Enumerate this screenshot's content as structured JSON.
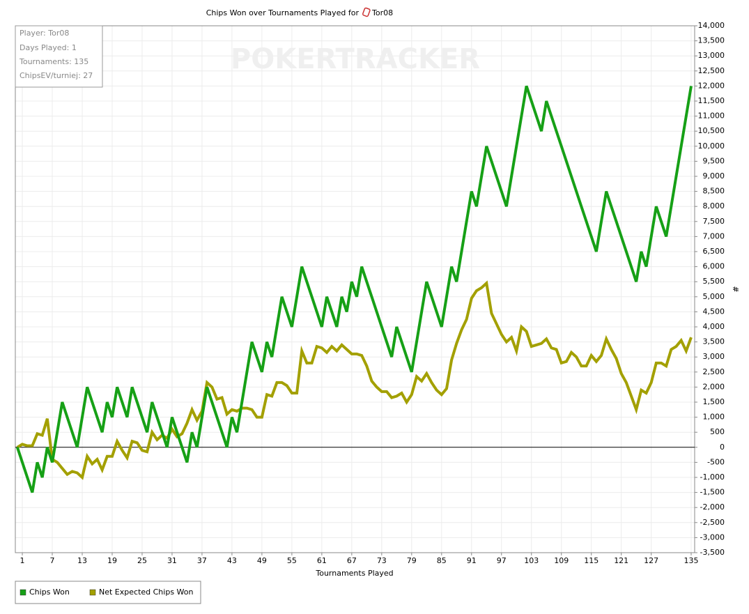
{
  "chart_data": {
    "type": "line",
    "title": "Chips Won over Tournaments Played for",
    "title_player": "Tor08",
    "watermark": "POKERTRACKER",
    "info": [
      "Player: Tor08",
      "Days Played: 1",
      "Tournaments: 135",
      "ChipsEV/turniej: 27"
    ],
    "xlabel": "Tournaments Played",
    "ylabel": "#",
    "grid": true,
    "x": [
      0,
      1,
      2,
      3,
      4,
      5,
      6,
      7,
      8,
      9,
      10,
      11,
      12,
      13,
      14,
      15,
      16,
      17,
      18,
      19,
      20,
      21,
      22,
      23,
      24,
      25,
      26,
      27,
      28,
      29,
      30,
      31,
      32,
      33,
      34,
      35,
      36,
      37,
      38,
      39,
      40,
      41,
      42,
      43,
      44,
      45,
      46,
      47,
      48,
      49,
      50,
      51,
      52,
      53,
      54,
      55,
      56,
      57,
      58,
      59,
      60,
      61,
      62,
      63,
      64,
      65,
      66,
      67,
      68,
      69,
      70,
      71,
      72,
      73,
      74,
      75,
      76,
      77,
      78,
      79,
      80,
      81,
      82,
      83,
      84,
      85,
      86,
      87,
      88,
      89,
      90,
      91,
      92,
      93,
      94,
      95,
      96,
      97,
      98,
      99,
      100,
      101,
      102,
      103,
      104,
      105,
      106,
      107,
      108,
      109,
      110,
      111,
      112,
      113,
      114,
      115,
      116,
      117,
      118,
      119,
      120,
      121,
      122,
      123,
      124,
      125,
      126,
      127,
      128,
      129,
      130,
      131,
      132,
      133,
      134,
      135
    ],
    "series": [
      {
        "name": "Chips Won",
        "color": "#16a016",
        "values": [
          0,
          -500,
          -1000,
          -1500,
          -500,
          -1000,
          0,
          -500,
          500,
          1500,
          1000,
          500,
          0,
          1000,
          2000,
          1500,
          1000,
          500,
          1500,
          1000,
          2000,
          1500,
          1000,
          2000,
          1500,
          1000,
          500,
          1500,
          1000,
          500,
          0,
          1000,
          500,
          0,
          -500,
          500,
          0,
          1000,
          2000,
          1500,
          1000,
          500,
          0,
          1000,
          500,
          1500,
          2500,
          3500,
          3000,
          2500,
          3500,
          3000,
          4000,
          5000,
          4500,
          4000,
          5000,
          6000,
          5500,
          5000,
          4500,
          4000,
          5000,
          4500,
          4000,
          5000,
          4500,
          5500,
          5000,
          6000,
          5500,
          5000,
          4500,
          4000,
          3500,
          3000,
          4000,
          3500,
          3000,
          2500,
          3500,
          4500,
          5500,
          5000,
          4500,
          4000,
          5000,
          6000,
          5500,
          6500,
          7500,
          8500,
          8000,
          9000,
          10000,
          9500,
          9000,
          8500,
          8000,
          9000,
          10000,
          11000,
          12000,
          11500,
          11000,
          10500,
          11500,
          11000,
          10500,
          10000,
          9500,
          9000,
          8500,
          8000,
          7500,
          7000,
          6500,
          7500,
          8500,
          8000,
          7500,
          7000,
          6500,
          6000,
          5500,
          6500,
          6000,
          7000,
          8000,
          7500,
          7000,
          8000,
          9000,
          10000,
          11000,
          12000
        ]
      },
      {
        "name": "Net Expected Chips Won",
        "color": "#a3a000",
        "values": [
          0,
          100,
          50,
          50,
          450,
          400,
          950,
          -400,
          -500,
          -700,
          -900,
          -800,
          -850,
          -1000,
          -300,
          -550,
          -400,
          -750,
          -300,
          -300,
          200,
          -100,
          -350,
          200,
          150,
          -100,
          -150,
          500,
          250,
          400,
          300,
          600,
          350,
          450,
          800,
          1250,
          900,
          1200,
          2150,
          2000,
          1600,
          1650,
          1100,
          1250,
          1200,
          1300,
          1300,
          1250,
          1000,
          1000,
          1750,
          1700,
          2150,
          2150,
          2050,
          1800,
          1800,
          3200,
          2800,
          2800,
          3350,
          3300,
          3150,
          3350,
          3200,
          3400,
          3250,
          3100,
          3100,
          3050,
          2700,
          2200,
          2000,
          1850,
          1850,
          1650,
          1700,
          1800,
          1500,
          1750,
          2350,
          2200,
          2450,
          2150,
          1900,
          1750,
          1950,
          2900,
          3450,
          3900,
          4250,
          4950,
          5200,
          5300,
          5450,
          4450,
          4100,
          3750,
          3500,
          3650,
          3200,
          4000,
          3850,
          3350,
          3400,
          3450,
          3600,
          3300,
          3250,
          2800,
          2850,
          3150,
          3000,
          2700,
          2700,
          3050,
          2850,
          3050,
          3600,
          3250,
          2950,
          2450,
          2150,
          1700,
          1250,
          1900,
          1800,
          2150,
          2800,
          2800,
          2700,
          3250,
          3350,
          3550,
          3200,
          3650
        ]
      }
    ],
    "xlim": [
      -0.4,
      135.7
    ],
    "xticks": [
      1,
      7,
      13,
      19,
      25,
      31,
      37,
      43,
      49,
      55,
      61,
      67,
      73,
      79,
      85,
      91,
      97,
      103,
      109,
      115,
      121,
      127,
      135
    ],
    "ylim": [
      -3500,
      14000
    ],
    "yticks": [
      {
        "value": -3500,
        "label": "-3,500"
      },
      {
        "value": -3000,
        "label": "-3,000"
      },
      {
        "value": -2500,
        "label": "-2,500"
      },
      {
        "value": -2000,
        "label": "-2,000"
      },
      {
        "value": -1500,
        "label": "-1,500"
      },
      {
        "value": -1000,
        "label": "-1,000"
      },
      -500,
      0,
      500,
      {
        "value": 1000,
        "label": "1,000"
      },
      {
        "value": 1500,
        "label": "1,500"
      },
      {
        "value": 2000,
        "label": "2,000"
      },
      {
        "value": 2500,
        "label": "2,500"
      },
      {
        "value": 3000,
        "label": "3,000"
      },
      {
        "value": 3500,
        "label": "3,500"
      },
      {
        "value": 4000,
        "label": "4,000"
      },
      {
        "value": 4500,
        "label": "4,500"
      },
      {
        "value": 5000,
        "label": "5,000"
      },
      {
        "value": 5500,
        "label": "5,500"
      },
      {
        "value": 6000,
        "label": "6,000"
      },
      {
        "value": 6500,
        "label": "6,500"
      },
      {
        "value": 7000,
        "label": "7,000"
      },
      {
        "value": 7500,
        "label": "7,500"
      },
      {
        "value": 8000,
        "label": "8,000"
      },
      {
        "value": 8500,
        "label": "8,500"
      },
      {
        "value": 9000,
        "label": "9,000"
      },
      {
        "value": 9500,
        "label": "9,500"
      },
      {
        "value": 10000,
        "label": "10,000"
      },
      {
        "value": 10500,
        "label": "10,500"
      },
      {
        "value": 11000,
        "label": "11,000"
      },
      {
        "value": 11500,
        "label": "11,500"
      },
      {
        "value": 12000,
        "label": "12,000"
      },
      {
        "value": 12500,
        "label": "12,500"
      },
      {
        "value": 13000,
        "label": "13,000"
      },
      {
        "value": 13500,
        "label": "13,500"
      },
      {
        "value": 14000,
        "label": "14,000"
      }
    ]
  }
}
